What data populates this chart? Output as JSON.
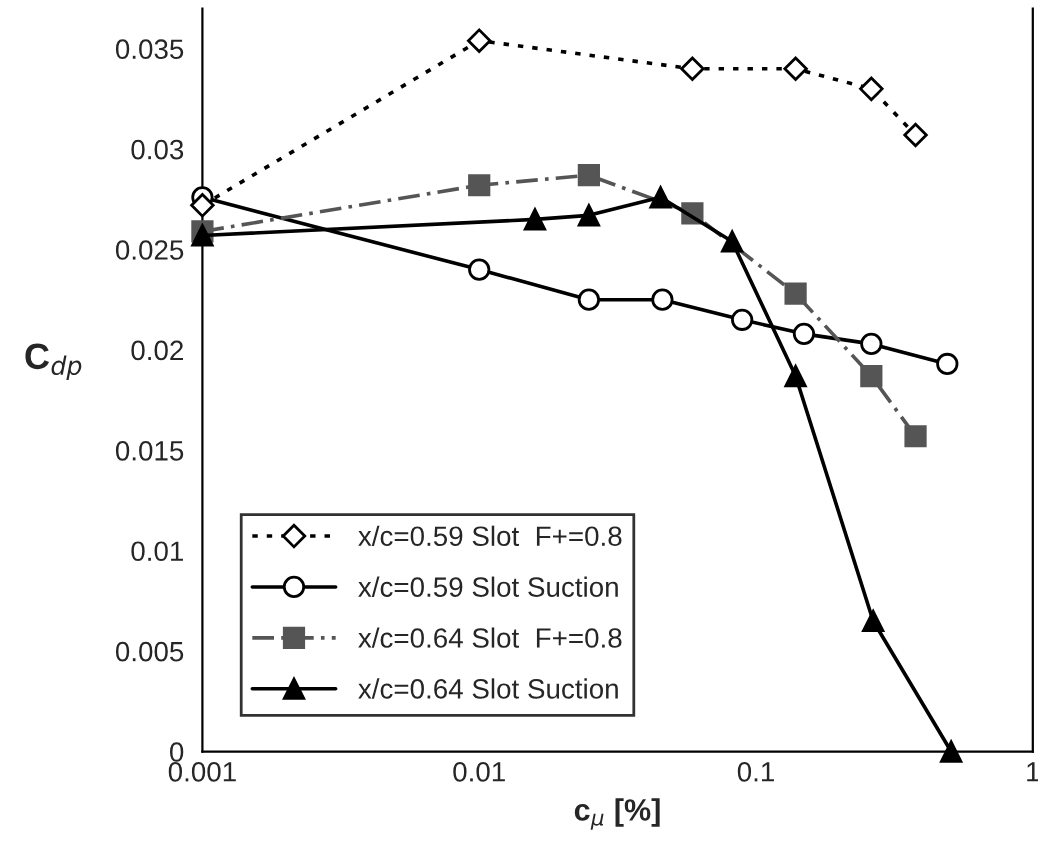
{
  "chart_data": {
    "type": "line",
    "xlabel": "c$_{μ}$ [%]",
    "ylabel": "C$_{dp}$",
    "log": "x",
    "xlim": [
      0.001,
      1
    ],
    "xticks": [
      0.001,
      0.01,
      0.1,
      1
    ],
    "ylim": [
      0,
      0.037
    ],
    "yticks": [
      0,
      0.005,
      0.01,
      0.015,
      0.02,
      0.025,
      0.03,
      0.035
    ],
    "grid": false,
    "legend": "bottom left",
    "series": [
      {
        "name": "x/c=0.59 Slot  F+=0.8",
        "color": "#000000",
        "marker": "diamond",
        "line_style": "dotted",
        "x": [
          0.001,
          0.01,
          0.0589,
          0.139,
          0.261,
          0.377
        ],
        "values": [
          0.0272,
          0.0354,
          0.034,
          0.034,
          0.033,
          0.0307
        ]
      },
      {
        "name": "x/c=0.59 Slot Suction",
        "color": "#000000",
        "marker": "circle",
        "line_style": "solid",
        "x": [
          0.001,
          0.01,
          0.0249,
          0.0459,
          0.0891,
          0.149,
          0.261,
          0.491
        ],
        "values": [
          0.0276,
          0.024,
          0.0225,
          0.0225,
          0.0215,
          0.0208,
          0.0203,
          0.0193
        ]
      },
      {
        "name": "x/c=0.64 Slot  F+=0.8",
        "color": "#555555",
        "marker": "square",
        "line_style": "dashed",
        "x": [
          0.001,
          0.01,
          0.0249,
          0.0589,
          0.139,
          0.261,
          0.377
        ],
        "values": [
          0.0259,
          0.0282,
          0.0287,
          0.0268,
          0.0228,
          0.0187,
          0.0157
        ]
      },
      {
        "name": "x/c=0.64 Slot Suction",
        "color": "#000000",
        "marker": "triangle",
        "line_style": "solid",
        "x": [
          0.001,
          0.0159,
          0.0249,
          0.0452,
          0.082,
          0.139,
          0.265,
          0.507
        ],
        "values": [
          0.0257,
          0.0265,
          0.0267,
          0.0276,
          0.0254,
          0.0187,
          0.0065,
          0.0
        ]
      }
    ]
  }
}
